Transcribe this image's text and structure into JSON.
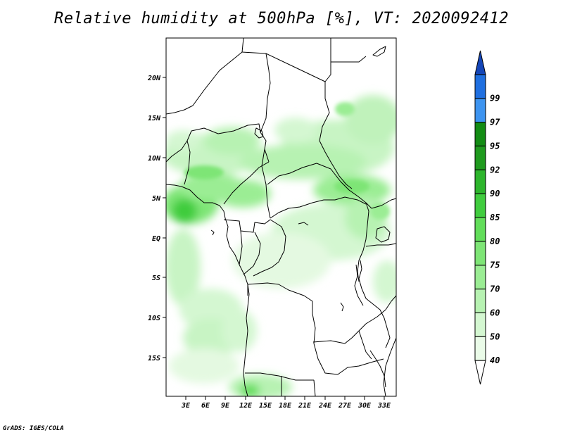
{
  "title": "Relative humidity at 500hPa [%], VT: 2020092412",
  "credit": "GrADS: IGES/COLA",
  "map": {
    "lat_labels": [
      "20N",
      "15N",
      "10N",
      "5N",
      "EQ",
      "5S",
      "10S",
      "15S"
    ],
    "lon_labels": [
      "3E",
      "6E",
      "9E",
      "12E",
      "15E",
      "18E",
      "21E",
      "24E",
      "27E",
      "30E",
      "33E"
    ],
    "lat_range": [
      -20,
      24.5
    ],
    "lon_range": [
      0.2,
      34.5
    ],
    "field": "relative humidity",
    "units": "%"
  },
  "colorbar": {
    "labels": [
      "40",
      "50",
      "60",
      "70",
      "75",
      "80",
      "85",
      "90",
      "92",
      "95",
      "97",
      "99"
    ],
    "colors": [
      "#ffffff",
      "#eafbe8",
      "#d4f7d1",
      "#b7f2b2",
      "#9bed94",
      "#7ee576",
      "#62dd5a",
      "#40cc3e",
      "#2db52c",
      "#1f9a1e",
      "#138c14",
      "#3d94f0",
      "#1f6fe0",
      "#1446b8"
    ]
  }
}
